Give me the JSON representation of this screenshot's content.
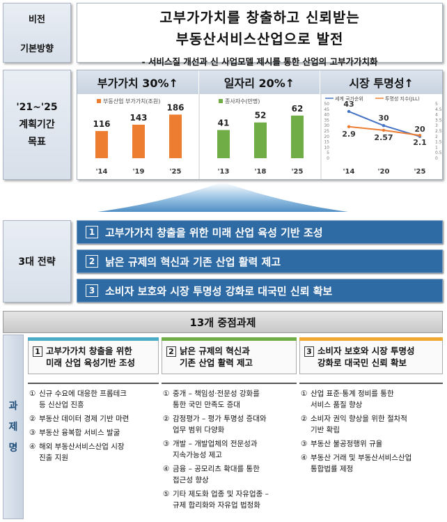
{
  "vision": {
    "label": "비전",
    "line1": "고부가가치를 창출하고 신뢰받는",
    "line2": "부동산서비스산업으로 발전"
  },
  "direction": {
    "label": "기본방향",
    "text": "- 서비스질 개선과 신 사업모델 제시를 통한 산업의 고부가가치화"
  },
  "goals": {
    "label_l1": "'21~'25",
    "label_l2": "계획기간",
    "label_l3": "목표"
  },
  "chart_data": [
    {
      "type": "bar",
      "title": "부가가치 30%↑",
      "legend": "부동산업 부가가치(조원)",
      "color": "#ed7d31",
      "categories": [
        "'14",
        "'19",
        "'25"
      ],
      "values": [
        116,
        143,
        186
      ]
    },
    {
      "type": "bar",
      "title": "일자리 20%↑",
      "legend": "종사자수(만명)",
      "color": "#70ad47",
      "categories": [
        "'13",
        "'18",
        "'25"
      ],
      "values": [
        41,
        52,
        62
      ]
    },
    {
      "type": "line",
      "title": "시장 투명성↑",
      "categories": [
        "'14",
        "'20",
        "'25"
      ],
      "series": [
        {
          "name": "세계 국가순위",
          "color": "#4472c4",
          "values": [
            43,
            30,
            20
          ]
        },
        {
          "name": "투명성 지수(JLL)",
          "color": "#ed7d31",
          "values": [
            2.9,
            2.57,
            2.1
          ]
        }
      ],
      "y_left": [
        0,
        50
      ],
      "y_right": [
        0,
        5
      ],
      "left_ticks": [
        "50",
        "45",
        "40",
        "35",
        "30",
        "25",
        "20",
        "15",
        "10",
        "5",
        "0"
      ],
      "right_ticks": [
        "5",
        "4.5",
        "4",
        "3.5",
        "3",
        "2.5",
        "2",
        "1.5",
        "1",
        "0.5",
        "0"
      ]
    }
  ],
  "strategies": {
    "label": "3대 전략",
    "items": [
      {
        "num": "1",
        "text": "고부가가치 창출을 위한 미래 산업 육성 기반 조성"
      },
      {
        "num": "2",
        "text": "낡은 규제의 혁신과 기존 산업 활력 제고"
      },
      {
        "num": "3",
        "text": "소비자 보호와 시장 투명성 강화로 대국민 신뢰 확보"
      }
    ]
  },
  "tasks": {
    "header": "13개 중점과제",
    "side_label": [
      "과",
      "제",
      "명"
    ],
    "columns": [
      {
        "num": "1",
        "title_l1": "고부가가치 창출을 위한",
        "title_l2": "미래 산업 육성기반 조성",
        "color": "#4bacc6",
        "items": [
          {
            "n": "①",
            "l1": "신규 수요에 대응한 프롭테크",
            "l2": "등 신산업 진흥"
          },
          {
            "n": "②",
            "l1": "부동산 데이터 경제 기반 마련",
            "l2": ""
          },
          {
            "n": "③",
            "l1": "부동산 융복합 서비스 발굴",
            "l2": ""
          },
          {
            "n": "④",
            "l1": "해외 부동산서비스산업 시장",
            "l2": "진출 지원"
          }
        ]
      },
      {
        "num": "2",
        "title_l1": "낡은 규제의 혁신과",
        "title_l2": "기존 산업 활력 제고",
        "color": "#70ad47",
        "items": [
          {
            "n": "①",
            "l1": "중개 – 책임성·전문성 강화를",
            "l2": "통한 국민 만족도 증대"
          },
          {
            "n": "②",
            "l1": "감정평가 – 평가 투명성 증대와",
            "l2": "업무 범위 다양화"
          },
          {
            "n": "③",
            "l1": "개발 – 개발업체의 전문성과",
            "l2": "지속가능성 제고"
          },
          {
            "n": "④",
            "l1": "금융 – 공모리츠 확대를 통한",
            "l2": "접근성 향상"
          },
          {
            "n": "⑤",
            "l1": "기타 제도화 업종 및 자유업종 –",
            "l2": "규제 합리화와 자유업 법정화"
          }
        ]
      },
      {
        "num": "3",
        "title_l1": "소비자 보호와 시장 투명성",
        "title_l2": "강화로 대국민 신뢰 확보",
        "color": "#f0a830",
        "items": [
          {
            "n": "①",
            "l1": "산업 표준·통계 정비를 통한",
            "l2": "서비스 품질 향상"
          },
          {
            "n": "②",
            "l1": "소비자 권익 향상을 위한 절차적",
            "l2": "기반 확립"
          },
          {
            "n": "③",
            "l1": "부동산 불공정행위 규율",
            "l2": ""
          },
          {
            "n": "④",
            "l1": "부동산 거래 및 부동산서비스산업",
            "l2": "통합법률 제정"
          }
        ]
      }
    ]
  }
}
